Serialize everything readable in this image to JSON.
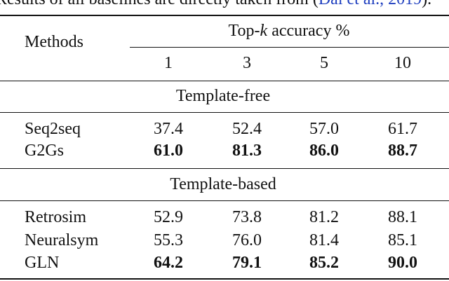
{
  "caption": {
    "text": "Results of all baselines are directly taken from (",
    "link": "Dai et al., 2019",
    "end": ")."
  },
  "header": {
    "methods": "Methods",
    "group": {
      "prefix": "Top-",
      "k": "k",
      "suffix": " accuracy %"
    },
    "columns": [
      "1",
      "3",
      "5",
      "10"
    ]
  },
  "sections": [
    {
      "title": "Template-free",
      "rows": [
        {
          "method": "Seq2seq",
          "values": [
            "37.4",
            "52.4",
            "57.0",
            "61.7"
          ],
          "bold": false
        },
        {
          "method": "G2Gs",
          "values": [
            "61.0",
            "81.3",
            "86.0",
            "88.7"
          ],
          "bold": true
        }
      ]
    },
    {
      "title": "Template-based",
      "rows": [
        {
          "method": "Retrosim",
          "values": [
            "52.9",
            "73.8",
            "81.2",
            "88.1"
          ],
          "bold": false
        },
        {
          "method": "Neuralsym",
          "values": [
            "55.3",
            "76.0",
            "81.4",
            "85.1"
          ],
          "bold": false
        },
        {
          "method": "GLN",
          "values": [
            "64.2",
            "79.1",
            "85.2",
            "90.0"
          ],
          "bold": true
        }
      ]
    }
  ]
}
